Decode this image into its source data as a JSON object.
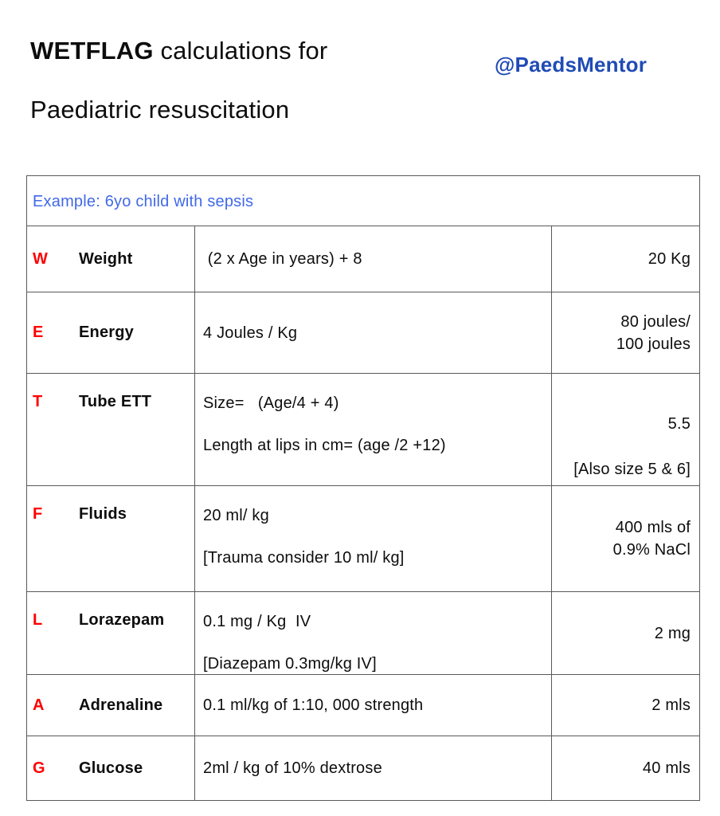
{
  "header": {
    "title_bold": "WETFLAG",
    "title_rest": " calculations for",
    "title_line2": "Paediatric resuscitation",
    "handle": "@PaedsMentor"
  },
  "table": {
    "header": "Example: 6yo child with sepsis",
    "rows": [
      {
        "letter": "W",
        "name": "Weight",
        "formula1": " (2 x Age in years) + 8",
        "value1": "20 Kg"
      },
      {
        "letter": "E",
        "name": "Energy",
        "formula1": "4 Joules / Kg",
        "value1": "80 joules/",
        "value2": "100 joules"
      },
      {
        "letter": "T",
        "name": "Tube ETT",
        "formula1": "Size=   (Age/4 + 4)",
        "formula2": "Length at lips in cm= (age /2 +12)",
        "value1": "5.5",
        "value2": "[Also size 5 & 6]"
      },
      {
        "letter": "F",
        "name": "Fluids",
        "formula1": "20 ml/ kg",
        "formula2": "[Trauma consider 10 ml/ kg]",
        "value1": "400 mls of",
        "value2": "0.9% NaCl"
      },
      {
        "letter": "L",
        "name": "Lorazepam",
        "formula1": "0.1 mg / Kg  IV",
        "formula2": "[Diazepam 0.3mg/kg IV]",
        "value1": "2 mg"
      },
      {
        "letter": "A",
        "name": "Adrenaline",
        "formula1": "0.1 ml/kg of 1:10, 000 strength",
        "value1": "2 mls"
      },
      {
        "letter": "G",
        "name": "Glucose",
        "formula1": "2ml / kg of 10% dextrose",
        "value1": "40 mls"
      }
    ]
  },
  "colors": {
    "accent_red": "#ff0000",
    "handle_blue": "#1f4bb5",
    "example_blue": "#4169e8",
    "border_gray": "#595959",
    "text": "#0d0d0d",
    "background": "#ffffff"
  }
}
